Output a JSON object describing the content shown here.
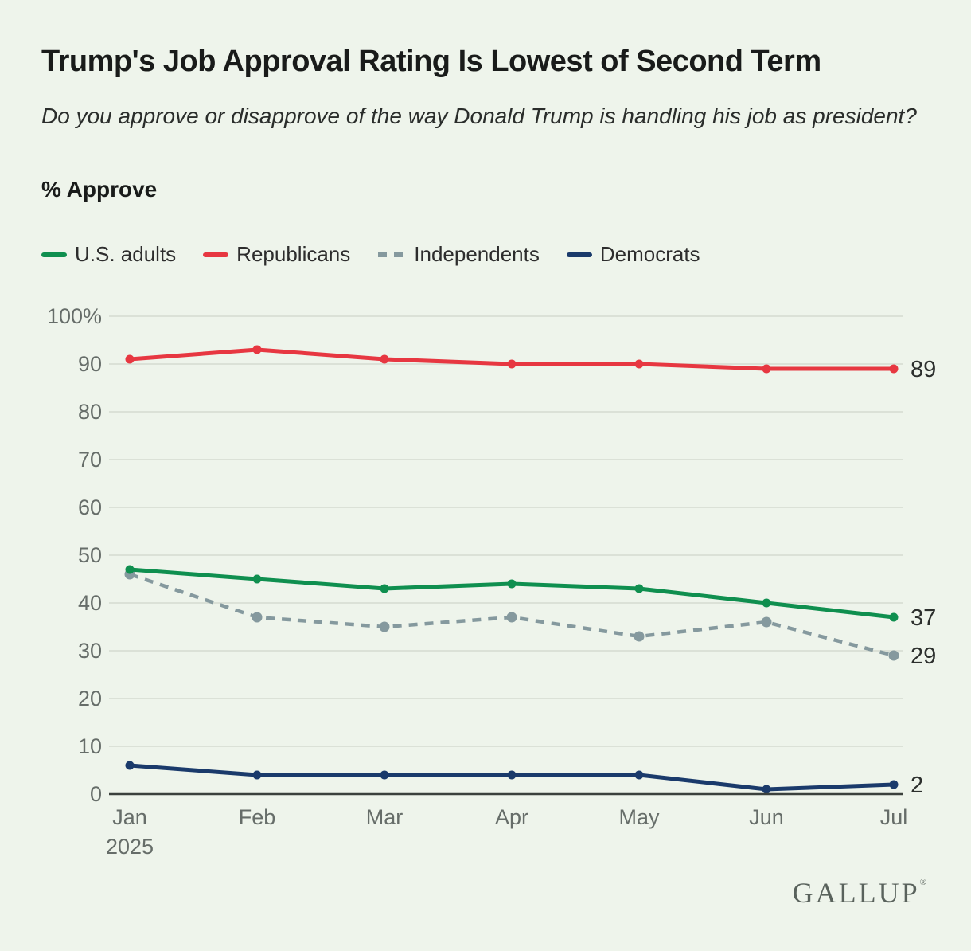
{
  "header": {
    "title": "Trump's Job Approval Rating Is Lowest of Second Term",
    "subtitle": "Do you approve or disapprove of the way Donald Trump is handling his job as president?",
    "measure_label": "% Approve"
  },
  "chart_data": {
    "type": "line",
    "x": [
      "Jan",
      "Feb",
      "Mar",
      "Apr",
      "May",
      "Jun",
      "Jul"
    ],
    "x_year_label": "2025",
    "series": [
      {
        "name": "U.S. adults",
        "color": "#0f8f4f",
        "style": "solid",
        "values": [
          47,
          45,
          43,
          44,
          43,
          40,
          37
        ],
        "end_label": "37"
      },
      {
        "name": "Republicans",
        "color": "#e73741",
        "style": "solid",
        "values": [
          91,
          93,
          91,
          90,
          90,
          89,
          89
        ],
        "end_label": "89"
      },
      {
        "name": "Independents",
        "color": "#85999e",
        "style": "dashed",
        "values": [
          46,
          37,
          35,
          37,
          33,
          36,
          29
        ],
        "end_label": "29"
      },
      {
        "name": "Democrats",
        "color": "#1a3a6b",
        "style": "solid",
        "values": [
          6,
          4,
          4,
          4,
          4,
          1,
          2
        ],
        "end_label": "2"
      }
    ],
    "ylim": [
      0,
      100
    ],
    "yticks": [
      0,
      10,
      20,
      30,
      40,
      50,
      60,
      70,
      80,
      90,
      100
    ],
    "ytick_top_label": "100%",
    "grid": true,
    "legend_position": "top",
    "colors": {
      "background": "#eef4eb",
      "gridline": "#dbe1d7",
      "axis_line": "#3b413d",
      "tick_label": "#666d69",
      "end_label": "#2c2f2d"
    }
  },
  "footer": {
    "logo": "GALLUP",
    "logo_mark": "®"
  }
}
